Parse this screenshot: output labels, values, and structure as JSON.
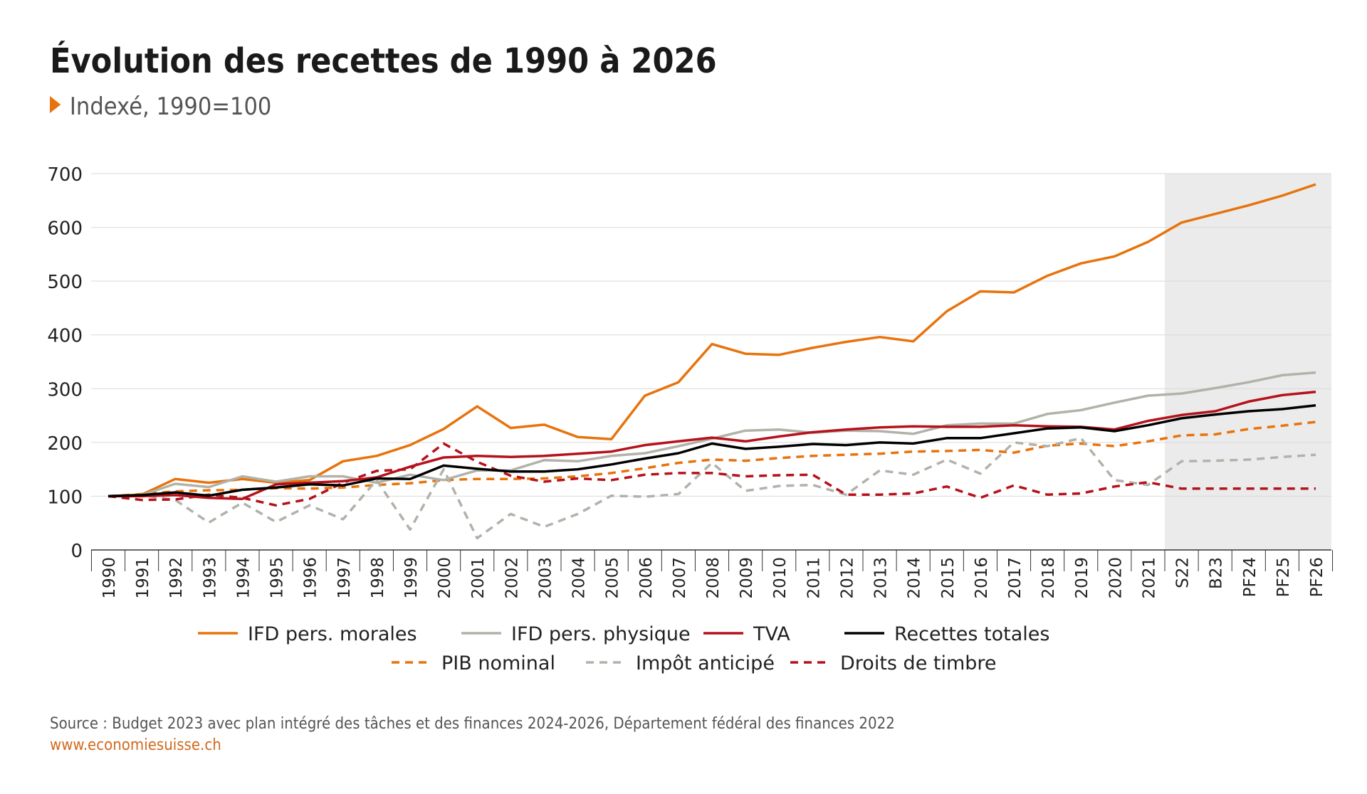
{
  "chart_data": {
    "type": "line",
    "title": "Évolution des recettes de 1990 à 2026",
    "subtitle": "Indexé, 1990=100",
    "xlabel": "",
    "ylabel": "",
    "ylim": [
      0,
      700
    ],
    "yticks": [
      0,
      100,
      200,
      300,
      400,
      500,
      600,
      700
    ],
    "grid": true,
    "legend_position": "bottom",
    "forecast_shading_from": "S22",
    "categories": [
      "1990",
      "1991",
      "1992",
      "1993",
      "1994",
      "1995",
      "1996",
      "1997",
      "1998",
      "1999",
      "2000",
      "2001",
      "2002",
      "2003",
      "2004",
      "2005",
      "2006",
      "2007",
      "2008",
      "2009",
      "2010",
      "2011",
      "2012",
      "2013",
      "2014",
      "2015",
      "2016",
      "2017",
      "2018",
      "2019",
      "2020",
      "2021",
      "S22",
      "B23",
      "PF24",
      "PF25",
      "PF26"
    ],
    "series": [
      {
        "name": "IFD pers. morales",
        "color": "#e8730c",
        "style": "solid",
        "values": [
          100,
          103,
          132,
          125,
          132,
          125,
          130,
          165,
          175,
          195,
          225,
          267,
          227,
          233,
          210,
          206,
          287,
          312,
          383,
          365,
          363,
          376,
          387,
          396,
          388,
          444,
          481,
          479,
          510,
          533,
          546,
          573,
          609,
          625,
          641,
          659,
          680
        ]
      },
      {
        "name": "IFD pers. physique",
        "color": "#b2b2aa",
        "style": "solid",
        "values": [
          100,
          102,
          123,
          117,
          137,
          127,
          137,
          137,
          125,
          140,
          130,
          148,
          148,
          167,
          165,
          175,
          180,
          193,
          207,
          222,
          224,
          218,
          222,
          221,
          216,
          232,
          235,
          235,
          253,
          260,
          274,
          287,
          291,
          301,
          312,
          325,
          330
        ]
      },
      {
        "name": "TVA",
        "color": "#b5121b",
        "style": "solid",
        "values": [
          100,
          100,
          102,
          97,
          95,
          122,
          125,
          128,
          135,
          155,
          172,
          175,
          173,
          175,
          179,
          183,
          195,
          202,
          209,
          202,
          211,
          219,
          224,
          228,
          230,
          229,
          229,
          232,
          230,
          229,
          224,
          240,
          251,
          258,
          276,
          288,
          294
        ]
      },
      {
        "name": "Recettes totales",
        "color": "#000000",
        "style": "solid",
        "values": [
          100,
          102,
          107,
          101,
          112,
          116,
          122,
          120,
          133,
          132,
          157,
          151,
          146,
          146,
          150,
          159,
          170,
          180,
          198,
          188,
          192,
          197,
          195,
          200,
          198,
          208,
          208,
          217,
          226,
          228,
          221,
          232,
          245,
          252,
          258,
          262,
          269
        ]
      },
      {
        "name": "PIB nominal",
        "color": "#e8730c",
        "style": "dashed",
        "values": [
          100,
          104,
          109,
          111,
          112,
          115,
          114,
          116,
          121,
          124,
          130,
          132,
          132,
          133,
          137,
          143,
          152,
          162,
          168,
          166,
          171,
          175,
          177,
          179,
          183,
          184,
          186,
          181,
          194,
          198,
          193,
          202,
          213,
          215,
          225,
          231,
          238
        ]
      },
      {
        "name": "Impôt anticipé",
        "color": "#b2b2aa",
        "style": "dashed",
        "values": [
          100,
          102,
          93,
          51,
          88,
          52,
          83,
          57,
          130,
          38,
          150,
          22,
          67,
          43,
          67,
          101,
          99,
          104,
          162,
          110,
          119,
          121,
          103,
          148,
          140,
          168,
          142,
          200,
          193,
          208,
          130,
          121,
          165,
          166,
          168,
          173,
          177
        ]
      },
      {
        "name": "Droits de timbre",
        "color": "#b5121b",
        "style": "dashed",
        "values": [
          100,
          93,
          94,
          103,
          97,
          83,
          95,
          125,
          147,
          150,
          198,
          164,
          138,
          127,
          133,
          130,
          140,
          143,
          143,
          137,
          139,
          140,
          103,
          103,
          105,
          118,
          97,
          120,
          103,
          105,
          118,
          126,
          114,
          114,
          114,
          114,
          114
        ]
      }
    ]
  },
  "source_text": "Source : Budget 2023 avec plan intégré des tâches et des finances 2024-2026, Département fédéral des finances 2022",
  "website": "www.economiesuisse.ch"
}
